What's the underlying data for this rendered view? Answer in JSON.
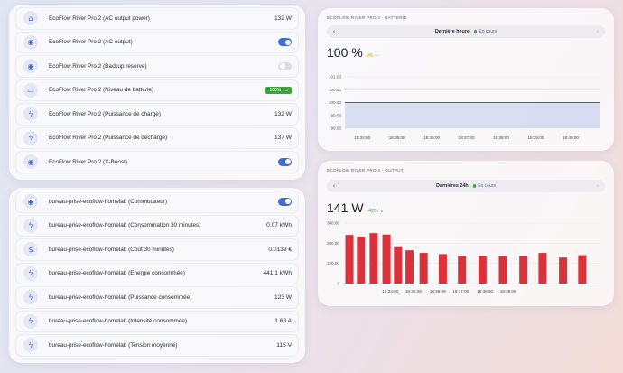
{
  "ecoflow_entities": [
    {
      "icon": "home-icon",
      "glyph": "⌂",
      "label": "EcoFlow River Pro 2 (AC output power)",
      "value": "132 W"
    },
    {
      "icon": "toggle-icon",
      "glyph": "◉",
      "label": "EcoFlow River Pro 2 (AC output)",
      "toggle": "on"
    },
    {
      "icon": "toggle-icon",
      "glyph": "◉",
      "label": "EcoFlow River Pro 2 (Backup reserve)",
      "toggle": "off"
    },
    {
      "icon": "battery-icon",
      "glyph": "▭",
      "label": "EcoFlow River Pro 2 (Niveau de batterie)",
      "badge": "100%"
    },
    {
      "icon": "flash-icon",
      "glyph": "ϟ",
      "label": "EcoFlow River Pro 2 (Puissance de charge)",
      "value": "132 W"
    },
    {
      "icon": "flash-icon",
      "glyph": "ϟ",
      "label": "EcoFlow River Pro 2 (Puissance de décharge)",
      "value": "137 W"
    },
    {
      "icon": "toggle-icon",
      "glyph": "◉",
      "label": "EcoFlow River Pro 2 (X-Boost)",
      "toggle": "on"
    }
  ],
  "bureau_entities": [
    {
      "icon": "toggle-icon",
      "glyph": "◉",
      "label": "bureau-prise-ecoflow-homelab (Commutateur)",
      "toggle": "on"
    },
    {
      "icon": "flash-icon",
      "glyph": "ϟ",
      "label": "bureau-prise-ecoflow-homelab (Consommation 30 minutes)",
      "value": "0.07 kWh"
    },
    {
      "icon": "dollar-icon",
      "glyph": "$",
      "label": "bureau-prise-ecoflow-homelab (Coût 30 minutes)",
      "value": "0.0139 €"
    },
    {
      "icon": "flash-icon",
      "glyph": "ϟ",
      "label": "bureau-prise-ecoflow-homelab (Energie consommée)",
      "value": "441.1 kWh"
    },
    {
      "icon": "flash-icon",
      "glyph": "ϟ",
      "label": "bureau-prise-ecoflow-homelab (Puissance consommée)",
      "value": "123 W"
    },
    {
      "icon": "flash-icon",
      "glyph": "ϟ",
      "label": "bureau-prise-ecoflow-homelab (Intensité consommée)",
      "value": "1.68 A"
    },
    {
      "icon": "flash-icon",
      "glyph": "ϟ",
      "label": "bureau-prise-ecoflow-homelab (Tension moyenne)",
      "value": "115 V"
    }
  ],
  "battery_card": {
    "title": "ECOFLOW RIVER PRO 2 - BATTERIE",
    "period": "Dernière heure",
    "live": "En cours",
    "value": "100",
    "unit": "%",
    "delta": "0% —",
    "delta_color": "#d6a21a"
  },
  "output_card": {
    "title": "ECOFLOW RIVER PRO 2 - OUTPUT",
    "period": "Dernières 24h",
    "live": "En cours",
    "value": "141",
    "unit": "W",
    "delta": "-42% ↘",
    "delta_color": "#3aa53a"
  },
  "chart_data": [
    {
      "type": "area",
      "x_ticks": [
        "18:34:00",
        "18:35:00",
        "18:36:00",
        "18:37:00",
        "18:38:00",
        "18:39:00",
        "18:40:00"
      ],
      "y_ticks": [
        "99.00",
        "99.50",
        "100.00",
        "100.50",
        "101.00"
      ],
      "ylim": [
        99,
        101
      ],
      "x": [
        "18:33:30",
        "18:40:50"
      ],
      "values": [
        100,
        100
      ],
      "color": "#3f5fa8",
      "fill": "#d3dbf0"
    },
    {
      "type": "bar",
      "x_ticks": [
        "18:34:00",
        "18:35:00",
        "18:36:00",
        "18:37:00",
        "18:38:00",
        "18:39:00"
      ],
      "y_ticks": [
        "0",
        "100.00",
        "200.00",
        "300.00"
      ],
      "ylim": [
        0,
        300
      ],
      "values": [
        241,
        233,
        250,
        243,
        185,
        165,
        152,
        146,
        136,
        137,
        135,
        137,
        152,
        129,
        141
      ],
      "color": "#d9323a"
    }
  ]
}
